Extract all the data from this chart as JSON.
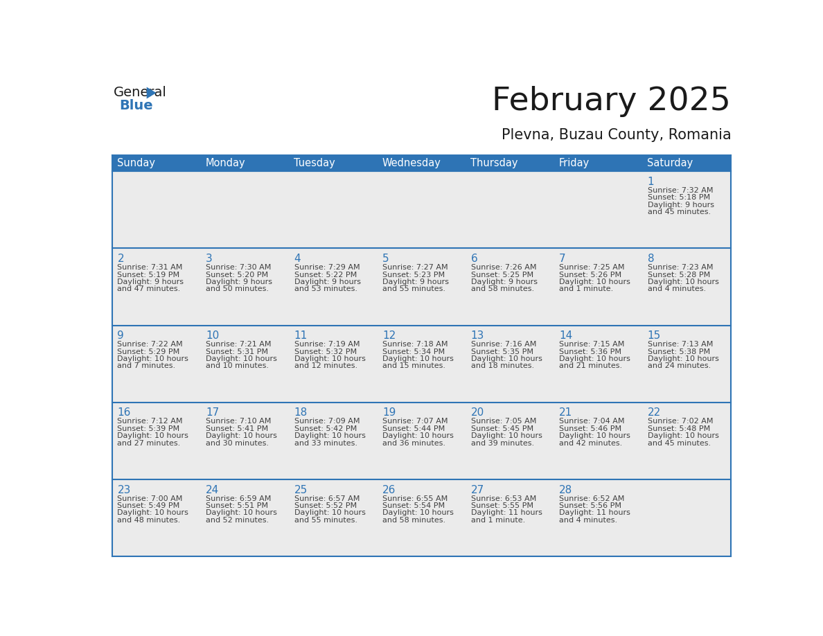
{
  "title": "February 2025",
  "subtitle": "Plevna, Buzau County, Romania",
  "days_of_week": [
    "Sunday",
    "Monday",
    "Tuesday",
    "Wednesday",
    "Thursday",
    "Friday",
    "Saturday"
  ],
  "header_bg_color": "#2E74B5",
  "header_text_color": "#FFFFFF",
  "cell_bg_color": "#EBEBEB",
  "row_divider_color": "#2E74B5",
  "day_number_color": "#2E74B5",
  "info_text_color": "#404040",
  "title_color": "#1a1a1a",
  "subtitle_color": "#1a1a1a",
  "logo_general_color": "#1a1a1a",
  "logo_blue_color": "#2E74B5",
  "calendar_data": [
    {
      "day": 1,
      "row": 0,
      "col": 6,
      "sunrise": "7:32 AM",
      "sunset": "5:18 PM",
      "daylight": "9 hours and 45 minutes."
    },
    {
      "day": 2,
      "row": 1,
      "col": 0,
      "sunrise": "7:31 AM",
      "sunset": "5:19 PM",
      "daylight": "9 hours and 47 minutes."
    },
    {
      "day": 3,
      "row": 1,
      "col": 1,
      "sunrise": "7:30 AM",
      "sunset": "5:20 PM",
      "daylight": "9 hours and 50 minutes."
    },
    {
      "day": 4,
      "row": 1,
      "col": 2,
      "sunrise": "7:29 AM",
      "sunset": "5:22 PM",
      "daylight": "9 hours and 53 minutes."
    },
    {
      "day": 5,
      "row": 1,
      "col": 3,
      "sunrise": "7:27 AM",
      "sunset": "5:23 PM",
      "daylight": "9 hours and 55 minutes."
    },
    {
      "day": 6,
      "row": 1,
      "col": 4,
      "sunrise": "7:26 AM",
      "sunset": "5:25 PM",
      "daylight": "9 hours and 58 minutes."
    },
    {
      "day": 7,
      "row": 1,
      "col": 5,
      "sunrise": "7:25 AM",
      "sunset": "5:26 PM",
      "daylight": "10 hours and 1 minute."
    },
    {
      "day": 8,
      "row": 1,
      "col": 6,
      "sunrise": "7:23 AM",
      "sunset": "5:28 PM",
      "daylight": "10 hours and 4 minutes."
    },
    {
      "day": 9,
      "row": 2,
      "col": 0,
      "sunrise": "7:22 AM",
      "sunset": "5:29 PM",
      "daylight": "10 hours and 7 minutes."
    },
    {
      "day": 10,
      "row": 2,
      "col": 1,
      "sunrise": "7:21 AM",
      "sunset": "5:31 PM",
      "daylight": "10 hours and 10 minutes."
    },
    {
      "day": 11,
      "row": 2,
      "col": 2,
      "sunrise": "7:19 AM",
      "sunset": "5:32 PM",
      "daylight": "10 hours and 12 minutes."
    },
    {
      "day": 12,
      "row": 2,
      "col": 3,
      "sunrise": "7:18 AM",
      "sunset": "5:34 PM",
      "daylight": "10 hours and 15 minutes."
    },
    {
      "day": 13,
      "row": 2,
      "col": 4,
      "sunrise": "7:16 AM",
      "sunset": "5:35 PM",
      "daylight": "10 hours and 18 minutes."
    },
    {
      "day": 14,
      "row": 2,
      "col": 5,
      "sunrise": "7:15 AM",
      "sunset": "5:36 PM",
      "daylight": "10 hours and 21 minutes."
    },
    {
      "day": 15,
      "row": 2,
      "col": 6,
      "sunrise": "7:13 AM",
      "sunset": "5:38 PM",
      "daylight": "10 hours and 24 minutes."
    },
    {
      "day": 16,
      "row": 3,
      "col": 0,
      "sunrise": "7:12 AM",
      "sunset": "5:39 PM",
      "daylight": "10 hours and 27 minutes."
    },
    {
      "day": 17,
      "row": 3,
      "col": 1,
      "sunrise": "7:10 AM",
      "sunset": "5:41 PM",
      "daylight": "10 hours and 30 minutes."
    },
    {
      "day": 18,
      "row": 3,
      "col": 2,
      "sunrise": "7:09 AM",
      "sunset": "5:42 PM",
      "daylight": "10 hours and 33 minutes."
    },
    {
      "day": 19,
      "row": 3,
      "col": 3,
      "sunrise": "7:07 AM",
      "sunset": "5:44 PM",
      "daylight": "10 hours and 36 minutes."
    },
    {
      "day": 20,
      "row": 3,
      "col": 4,
      "sunrise": "7:05 AM",
      "sunset": "5:45 PM",
      "daylight": "10 hours and 39 minutes."
    },
    {
      "day": 21,
      "row": 3,
      "col": 5,
      "sunrise": "7:04 AM",
      "sunset": "5:46 PM",
      "daylight": "10 hours and 42 minutes."
    },
    {
      "day": 22,
      "row": 3,
      "col": 6,
      "sunrise": "7:02 AM",
      "sunset": "5:48 PM",
      "daylight": "10 hours and 45 minutes."
    },
    {
      "day": 23,
      "row": 4,
      "col": 0,
      "sunrise": "7:00 AM",
      "sunset": "5:49 PM",
      "daylight": "10 hours and 48 minutes."
    },
    {
      "day": 24,
      "row": 4,
      "col": 1,
      "sunrise": "6:59 AM",
      "sunset": "5:51 PM",
      "daylight": "10 hours and 52 minutes."
    },
    {
      "day": 25,
      "row": 4,
      "col": 2,
      "sunrise": "6:57 AM",
      "sunset": "5:52 PM",
      "daylight": "10 hours and 55 minutes."
    },
    {
      "day": 26,
      "row": 4,
      "col": 3,
      "sunrise": "6:55 AM",
      "sunset": "5:54 PM",
      "daylight": "10 hours and 58 minutes."
    },
    {
      "day": 27,
      "row": 4,
      "col": 4,
      "sunrise": "6:53 AM",
      "sunset": "5:55 PM",
      "daylight": "11 hours and 1 minute."
    },
    {
      "day": 28,
      "row": 4,
      "col": 5,
      "sunrise": "6:52 AM",
      "sunset": "5:56 PM",
      "daylight": "11 hours and 4 minutes."
    }
  ],
  "num_rows": 5,
  "num_cols": 7
}
